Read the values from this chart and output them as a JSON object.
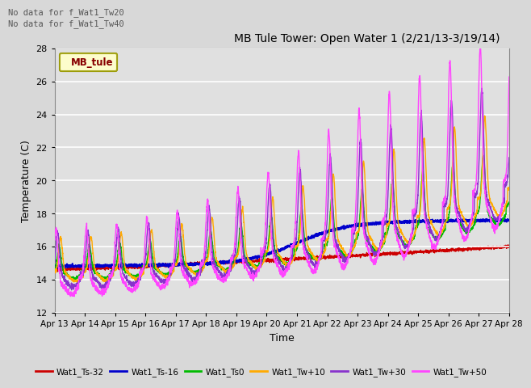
{
  "title": "MB Tule Tower: Open Water 1 (2/21/13-3/19/14)",
  "xlabel": "Time",
  "ylabel": "Temperature (C)",
  "ylim": [
    12,
    28
  ],
  "yticks": [
    12,
    14,
    16,
    18,
    20,
    22,
    24,
    26,
    28
  ],
  "annotation_text1": "No data for f_Wat1_Tw20",
  "annotation_text2": "No data for f_Wat1_Tw40",
  "legend_label": "MB_tule",
  "legend_colors": {
    "Wat1_Ts-32": "#cc0000",
    "Wat1_Ts-16": "#0000cc",
    "Wat1_Ts0": "#00bb00",
    "Wat1_Tw+10": "#ffaa00",
    "Wat1_Tw+30": "#8833cc",
    "Wat1_Tw+50": "#ff44ff"
  },
  "x_tick_labels": [
    "Apr 13",
    "Apr 14",
    "Apr 15",
    "Apr 16",
    "Apr 17",
    "Apr 18",
    "Apr 19",
    "Apr 20",
    "Apr 21",
    "Apr 22",
    "Apr 23",
    "Apr 24",
    "Apr 25",
    "Apr 26",
    "Apr 27",
    "Apr 28"
  ],
  "n_days": 15
}
